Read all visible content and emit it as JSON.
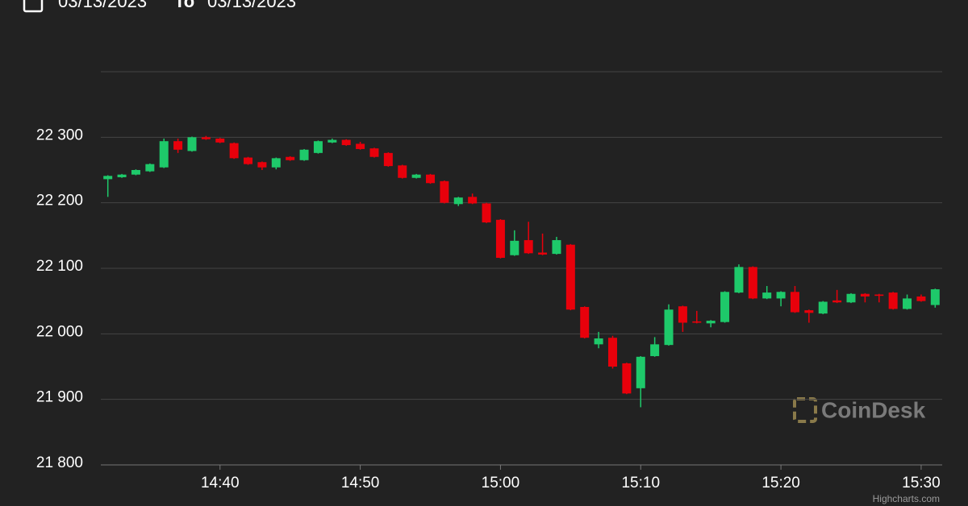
{
  "date_range": {
    "from": "03/13/2023",
    "separator": "To",
    "to": "03/13/2023"
  },
  "watermark": "CoinDesk",
  "credit": "Highcharts.com",
  "chart_data": {
    "type": "candlestick",
    "up_color": "#1ec96a",
    "down_color": "#e8000b",
    "grid": true,
    "xlim": [
      871.5,
      931.5
    ],
    "xticks": [
      {
        "value": 880,
        "label": "14:40"
      },
      {
        "value": 890,
        "label": "14:50"
      },
      {
        "value": 900,
        "label": "15:00"
      },
      {
        "value": 910,
        "label": "15:10"
      },
      {
        "value": 920,
        "label": "15:20"
      },
      {
        "value": 930,
        "label": "15:30"
      }
    ],
    "ylim": [
      21800,
      22400
    ],
    "yticks": [
      {
        "value": 21800,
        "label": "21 800"
      },
      {
        "value": 21900,
        "label": "21 900"
      },
      {
        "value": 22000,
        "label": "22 000"
      },
      {
        "value": 22100,
        "label": "22 100"
      },
      {
        "value": 22200,
        "label": "22 200"
      },
      {
        "value": 22300,
        "label": "22 300"
      }
    ],
    "x": [
      872,
      873,
      874,
      875,
      876,
      877,
      878,
      879,
      880,
      881,
      882,
      883,
      884,
      885,
      886,
      887,
      888,
      889,
      890,
      891,
      892,
      893,
      894,
      895,
      896,
      897,
      898,
      899,
      900,
      901,
      902,
      903,
      904,
      905,
      906,
      907,
      908,
      909,
      910,
      911,
      912,
      913,
      914,
      915,
      916,
      917,
      918,
      919,
      920,
      921,
      922,
      923,
      924,
      925,
      926,
      927,
      928,
      929,
      930,
      931
    ],
    "open": [
      22236,
      22239,
      22243,
      22248,
      22254,
      22294,
      22279,
      22300,
      22298,
      22291,
      22269,
      22262,
      22254,
      22270,
      22265,
      22276,
      22292,
      22296,
      22290,
      22283,
      22276,
      22257,
      22238,
      22243,
      22233,
      22198,
      22209,
      22199,
      22174,
      22120,
      22143,
      22124,
      22122,
      22136,
      22041,
      21984,
      21994,
      21955,
      21917,
      21966,
      21983,
      22042,
      22019,
      22016,
      22018,
      22063,
      22102,
      22054,
      22054,
      22064,
      22036,
      22031,
      22051,
      22048,
      22061,
      22060,
      22063,
      22038,
      22057,
      22044
    ],
    "high": [
      22242,
      22244,
      22251,
      22260,
      22298,
      22298,
      22301,
      22302,
      22299,
      22292,
      22270,
      22263,
      22269,
      22271,
      22282,
      22295,
      22298,
      22297,
      22293,
      22284,
      22277,
      22258,
      22244,
      22244,
      22234,
      22209,
      22214,
      22200,
      22175,
      22158,
      22171,
      22153,
      22148,
      22137,
      22042,
      22003,
      21997,
      21956,
      21966,
      21995,
      22045,
      22043,
      22035,
      22021,
      22065,
      22106,
      22103,
      22073,
      22065,
      22073,
      22037,
      22050,
      22067,
      22062,
      22062,
      22061,
      22064,
      22060,
      22060,
      22069
    ],
    "low": [
      22209,
      22238,
      22242,
      22247,
      22253,
      22276,
      22278,
      22296,
      22291,
      22267,
      22258,
      22250,
      22251,
      22264,
      22264,
      22275,
      22291,
      22287,
      22281,
      22269,
      22255,
      22237,
      22237,
      22229,
      22199,
      22195,
      22198,
      22169,
      22115,
      22119,
      22122,
      22120,
      22121,
      22036,
      21993,
      21978,
      21947,
      21908,
      21888,
      21965,
      21982,
      22003,
      22016,
      22010,
      22017,
      22062,
      22053,
      22053,
      22042,
      22032,
      22017,
      22030,
      22047,
      22047,
      22048,
      22048,
      22037,
      22037,
      22049,
      22040
    ],
    "close": [
      22241,
      22243,
      22250,
      22259,
      22294,
      22281,
      22300,
      22297,
      22292,
      22268,
      22259,
      22254,
      22268,
      22265,
      22281,
      22294,
      22296,
      22288,
      22282,
      22270,
      22256,
      22238,
      22243,
      22230,
      22200,
      22208,
      22199,
      22170,
      22116,
      22142,
      22123,
      22121,
      22143,
      22037,
      21994,
      21993,
      21950,
      21909,
      21965,
      21984,
      22037,
      22017,
      22017,
      22020,
      22064,
      22102,
      22054,
      22063,
      22064,
      22033,
      22032,
      22049,
      22048,
      22061,
      22057,
      22058,
      22038,
      22054,
      22050,
      22068
    ]
  }
}
